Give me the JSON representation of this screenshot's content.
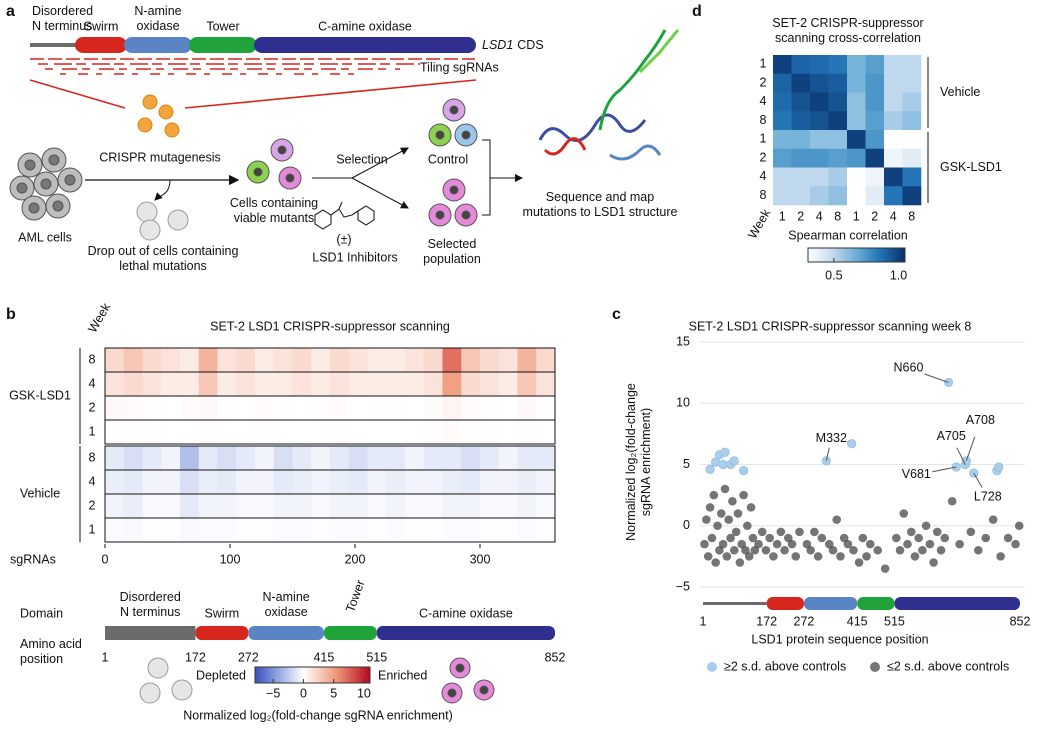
{
  "diagram": {
    "label": "a",
    "domain_labels": [
      [
        "Disordered",
        "N terminus"
      ],
      "Swirm",
      [
        "N-amine",
        "oxidase"
      ],
      "Tower",
      "C-amine oxidase"
    ],
    "gene": "LSD1",
    "cds": "CDS",
    "tiling": "Tiling sgRNAs",
    "steps": {
      "aml": "AML cells",
      "mutagenesis": "CRISPR mutagenesis",
      "dropout": [
        "Drop out of cells containing",
        "lethal mutations"
      ],
      "viable": [
        "Cells containing",
        "viable mutants"
      ],
      "selection": "Selection",
      "control": "Control",
      "racemic": "(±)",
      "inhibitors": "LSD1 Inhibitors",
      "selected": [
        "Selected",
        "population"
      ],
      "sequence": [
        "Sequence and map",
        "mutations to LSD1 structure"
      ]
    }
  },
  "chart_data": [
    {
      "panel": "b",
      "type": "heatmap",
      "title": "SET-2 LSD1 CRISPR-suppressor scanning",
      "week_label": "Week",
      "x_label": "sgRNAs",
      "xlim": [
        0,
        360
      ],
      "xticks": [
        0,
        100,
        200,
        300
      ],
      "groups": [
        {
          "name": "GSK-LSD1",
          "rows": [
            8,
            4,
            2,
            1
          ]
        },
        {
          "name": "Vehicle",
          "rows": [
            8,
            4,
            2,
            1
          ]
        }
      ],
      "values": [
        [
          2,
          3,
          2,
          1.5,
          1,
          4,
          1.5,
          2,
          1,
          1.5,
          2,
          1,
          2,
          1.5,
          1,
          1,
          1.5,
          2,
          7,
          3,
          2,
          1.5,
          4,
          2
        ],
        [
          1.5,
          2,
          1.5,
          1,
          1,
          3,
          1,
          1.5,
          1,
          1,
          1.5,
          1,
          1.5,
          1,
          1,
          1,
          1,
          1.5,
          5,
          2,
          1.5,
          1,
          3,
          1.5
        ],
        [
          0.3,
          0.2,
          0.1,
          0,
          0.2,
          0.3,
          0.1,
          0,
          0.2,
          0.1,
          0,
          0.1,
          0.2,
          0,
          0.1,
          0.1,
          0,
          0.2,
          0.5,
          0.2,
          0.1,
          0,
          0.3,
          0.1
        ],
        [
          0.1,
          0,
          0.1,
          0,
          0,
          0.1,
          0,
          0,
          0.1,
          0,
          0,
          0,
          0.1,
          0,
          0,
          0,
          0,
          0.1,
          0.2,
          0,
          0.1,
          0,
          0.1,
          0
        ],
        [
          -1,
          -1.5,
          -1,
          -0.5,
          -3,
          -1,
          -1.5,
          -1,
          -0.5,
          -1.5,
          -1,
          -0.5,
          -1,
          -1.5,
          -1,
          -1,
          -0.5,
          -1,
          -1,
          -1.5,
          -1,
          -0.5,
          -1,
          -1
        ],
        [
          -0.8,
          -1,
          -0.5,
          -0.5,
          -1.5,
          -0.8,
          -1,
          -0.5,
          -0.5,
          -1,
          -0.8,
          -0.5,
          -0.8,
          -1,
          -0.5,
          -0.8,
          -0.5,
          -0.5,
          -0.8,
          -1,
          -0.5,
          -0.5,
          -0.8,
          -0.5
        ],
        [
          -0.5,
          -0.8,
          -0.3,
          -0.3,
          -1,
          -0.5,
          -0.5,
          -0.3,
          -0.3,
          -0.5,
          -0.5,
          -0.3,
          -0.5,
          -0.5,
          -0.3,
          -0.5,
          -0.3,
          -0.3,
          -0.5,
          -0.5,
          -0.3,
          -0.3,
          -0.5,
          -0.3
        ],
        [
          -0.2,
          -0.3,
          -0.1,
          -0.1,
          -0.3,
          -0.2,
          -0.2,
          -0.1,
          -0.1,
          -0.2,
          -0.2,
          -0.1,
          -0.2,
          -0.2,
          -0.1,
          -0.2,
          -0.1,
          -0.1,
          -0.2,
          -0.2,
          -0.1,
          -0.1,
          -0.2,
          -0.1
        ]
      ],
      "colorbar": {
        "lim": [
          -8,
          11
        ],
        "ticks": [
          {
            "value": -5,
            "label": "−5"
          },
          0,
          5,
          10
        ],
        "low_label": "Depleted",
        "high_label": "Enriched",
        "label": "Normalized log₂(fold-change sgRNA enrichment)"
      },
      "domain_title": "Domain",
      "domains": [
        {
          "name": [
            "Disordered",
            "N terminus"
          ],
          "start": 1,
          "end": 172,
          "color": "#6b6b6b"
        },
        {
          "name": "Swirm",
          "start": 172,
          "end": 272,
          "color": "#d7261e"
        },
        {
          "name": [
            "N-amine",
            "oxidase"
          ],
          "start": 272,
          "end": 415,
          "color": "#5b84c4"
        },
        {
          "name": "Tower",
          "start": 415,
          "end": 515,
          "color": "#1fa33a"
        },
        {
          "name": "C-amine oxidase",
          "start": 515,
          "end": 852,
          "color": "#2e2f8f"
        }
      ],
      "position_label": [
        "Amino acid",
        "position"
      ],
      "position_lim": [
        1,
        852
      ],
      "position_ticks": [
        1,
        172,
        272,
        415,
        515,
        852
      ]
    },
    {
      "panel": "c",
      "type": "scatter",
      "title": "SET-2 LSD1 CRISPR-suppressor scanning week 8",
      "y_label": [
        "Normalized log₂(fold-change",
        "sgRNA enrichment)"
      ],
      "x_label": "LSD1 protein sequence position",
      "xlim": [
        1,
        852
      ],
      "xticks": [
        1,
        172,
        272,
        415,
        515,
        852
      ],
      "ylim": [
        -5,
        15
      ],
      "yticks": [
        {
          "value": -5,
          "label": "−5"
        },
        0,
        5,
        10,
        15
      ],
      "grid": true,
      "series": [
        {
          "name": "≥2 s.d. above controls",
          "color": "#a9cdea",
          "x": [
            20,
            35,
            45,
            55,
            60,
            75,
            85,
            110,
            332,
            400,
            660,
            681,
            705,
            708,
            728,
            790,
            795
          ],
          "y": [
            4.6,
            5.2,
            5.8,
            5.0,
            6.0,
            5.0,
            5.3,
            4.5,
            5.3,
            6.7,
            11.7,
            4.8,
            5.0,
            5.3,
            4.3,
            4.5,
            4.8
          ]
        },
        {
          "name": "≤2 s.d. above controls",
          "color": "#404040",
          "x": [
            5,
            10,
            15,
            20,
            25,
            30,
            35,
            40,
            45,
            50,
            55,
            60,
            65,
            70,
            75,
            80,
            85,
            90,
            95,
            100,
            105,
            110,
            115,
            120,
            125,
            130,
            135,
            140,
            150,
            160,
            170,
            180,
            190,
            200,
            210,
            220,
            230,
            240,
            250,
            260,
            280,
            290,
            300,
            310,
            320,
            340,
            350,
            360,
            370,
            380,
            390,
            405,
            420,
            430,
            440,
            450,
            470,
            490,
            520,
            530,
            540,
            550,
            560,
            570,
            580,
            590,
            600,
            610,
            620,
            630,
            640,
            650,
            670,
            690,
            720,
            740,
            760,
            780,
            800,
            820,
            840,
            850
          ],
          "y": [
            -1.5,
            0.5,
            -2.5,
            1.5,
            -1,
            2.5,
            -3,
            0,
            -2,
            1,
            -1.5,
            3,
            -2.5,
            0.5,
            -1,
            2,
            -2,
            -0.5,
            1,
            -3,
            -1.5,
            2.5,
            -2,
            0,
            -2.5,
            1.5,
            -1,
            -2,
            -1.5,
            -0.5,
            -2,
            -1,
            -2.5,
            -1.5,
            -0.5,
            -2,
            -1,
            -1.5,
            -2.5,
            -0.5,
            -1.5,
            -2,
            -0.5,
            -2.5,
            -1,
            -1.5,
            -2,
            0.5,
            -2.5,
            -1,
            -1.5,
            -2,
            -3,
            -1,
            -2.5,
            -1.5,
            -2,
            -3.5,
            -1,
            -2,
            1,
            -1.5,
            -0.5,
            -2.5,
            -1,
            -2,
            0,
            -1.5,
            -3,
            -0.5,
            -2,
            -1,
            2,
            -1.5,
            -0.5,
            -2,
            -1,
            0.5,
            -2.5,
            -1,
            -1.5,
            0
          ]
        }
      ],
      "annotations": [
        {
          "text": "N660",
          "x": 660,
          "y": 11.7
        },
        {
          "text": "M332",
          "x": 332,
          "y": 5.3
        },
        {
          "text": "A705",
          "x": 705,
          "y": 5.0
        },
        {
          "text": "A708",
          "x": 708,
          "y": 5.3
        },
        {
          "text": "V681",
          "x": 681,
          "y": 4.8
        },
        {
          "text": "L728",
          "x": 728,
          "y": 4.3
        }
      ]
    },
    {
      "panel": "d",
      "type": "heatmap",
      "title": [
        "SET-2 CRISPR-suppressor",
        "scanning cross-correlation"
      ],
      "week_label": "Week",
      "groups": [
        {
          "name": "Vehicle",
          "rows": [
            1,
            2,
            4,
            8
          ]
        },
        {
          "name": "GSK-LSD1",
          "rows": [
            1,
            2,
            4,
            8
          ]
        }
      ],
      "values": [
        [
          1,
          0.9,
          0.88,
          0.85,
          0.65,
          0.72,
          0.5,
          0.5
        ],
        [
          0.9,
          1,
          0.95,
          0.92,
          0.65,
          0.75,
          0.5,
          0.5
        ],
        [
          0.88,
          0.95,
          1,
          0.95,
          0.6,
          0.75,
          0.5,
          0.55
        ],
        [
          0.85,
          0.92,
          0.95,
          1,
          0.6,
          0.72,
          0.55,
          0.6
        ],
        [
          0.65,
          0.65,
          0.6,
          0.6,
          1,
          0.75,
          0.3,
          0.3
        ],
        [
          0.72,
          0.75,
          0.75,
          0.72,
          0.75,
          1,
          0.35,
          0.4
        ],
        [
          0.5,
          0.5,
          0.5,
          0.55,
          0.3,
          0.35,
          1,
          0.85
        ],
        [
          0.5,
          0.5,
          0.55,
          0.6,
          0.3,
          0.4,
          0.85,
          1
        ]
      ],
      "colorbar": {
        "label": "Spearman correlation",
        "lim": [
          0.3,
          1.05
        ],
        "ticks": [
          0.5,
          {
            "value": 1,
            "label": "1.0"
          }
        ]
      }
    }
  ]
}
